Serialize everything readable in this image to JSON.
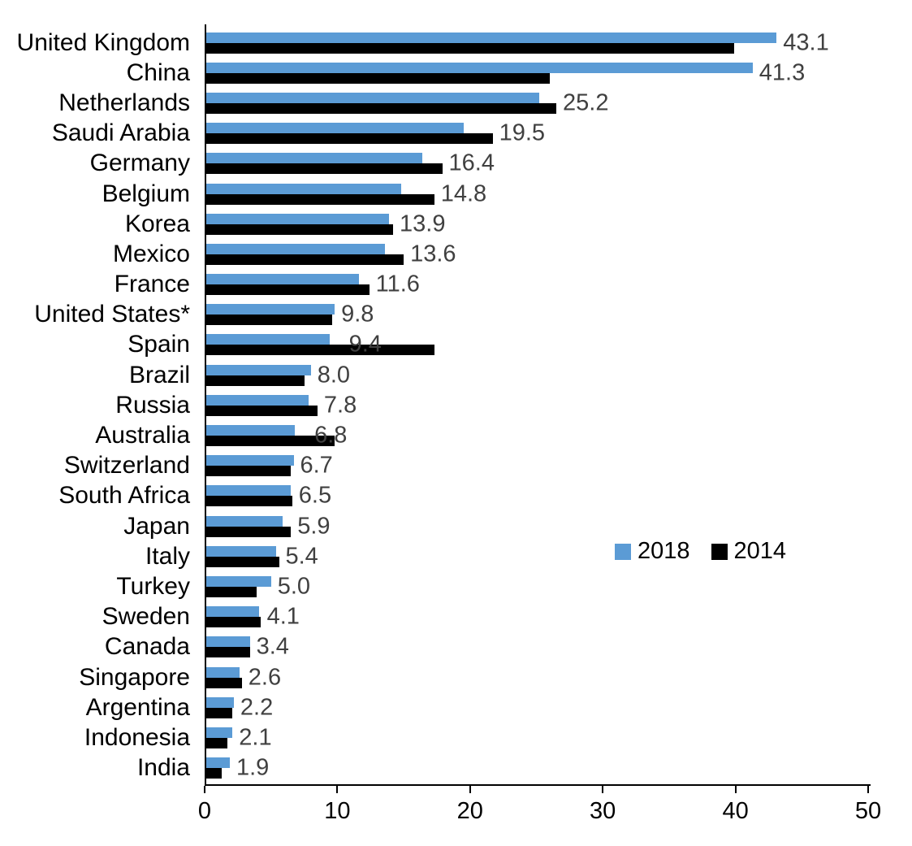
{
  "chart_data": {
    "type": "bar",
    "orientation": "horizontal",
    "title": "",
    "xlabel": "",
    "ylabel": "",
    "xlim": [
      0,
      50
    ],
    "x_tick_labels": [
      "0",
      "10",
      "20",
      "30",
      "40",
      "50"
    ],
    "x_tick_values": [
      0,
      10,
      20,
      30,
      40,
      50
    ],
    "grid": false,
    "legend_position": "middle-right",
    "categories": [
      "United Kingdom",
      "China",
      "Netherlands",
      "Saudi Arabia",
      "Germany",
      "Belgium",
      "Korea",
      "Mexico",
      "France",
      "United States*",
      "Spain",
      "Brazil",
      "Russia",
      "Australia",
      "Switzerland",
      "South Africa",
      "Japan",
      "Italy",
      "Turkey",
      "Sweden",
      "Canada",
      "Singapore",
      "Argentina",
      "Indonesia",
      "India"
    ],
    "series": [
      {
        "name": "2018",
        "color": "#5B9BD5",
        "values": [
          43.1,
          41.3,
          25.2,
          19.5,
          16.4,
          14.8,
          13.9,
          13.6,
          11.6,
          9.8,
          9.4,
          8.0,
          7.8,
          6.8,
          6.7,
          6.5,
          5.9,
          5.4,
          5.0,
          4.1,
          3.4,
          2.6,
          2.2,
          2.1,
          1.9
        ]
      },
      {
        "name": "2014",
        "color": "#000000",
        "values": [
          39.9,
          26.0,
          26.5,
          21.7,
          17.9,
          17.3,
          14.2,
          15.0,
          12.4,
          9.6,
          17.3,
          7.5,
          8.5,
          9.8,
          6.5,
          6.6,
          6.5,
          5.6,
          3.9,
          4.2,
          3.4,
          2.8,
          2.1,
          1.7,
          1.3
        ]
      }
    ],
    "data_labels": {
      "series": "2018",
      "color": "#404040",
      "values": [
        "43.1",
        "41.3",
        "25.2",
        "19.5",
        "16.4",
        "14.8",
        "13.9",
        "13.6",
        "11.6",
        "9.8",
        "9.4",
        "8.0",
        "7.8",
        "6.8",
        "6.7",
        "6.5",
        "5.9",
        "5.4",
        "5.0",
        "4.1",
        "3.4",
        "2.6",
        "2.2",
        "2.1",
        "1.9"
      ]
    }
  },
  "legend": {
    "items": [
      {
        "label": "2018",
        "color": "#5B9BD5"
      },
      {
        "label": "2014",
        "color": "#000000"
      }
    ]
  }
}
